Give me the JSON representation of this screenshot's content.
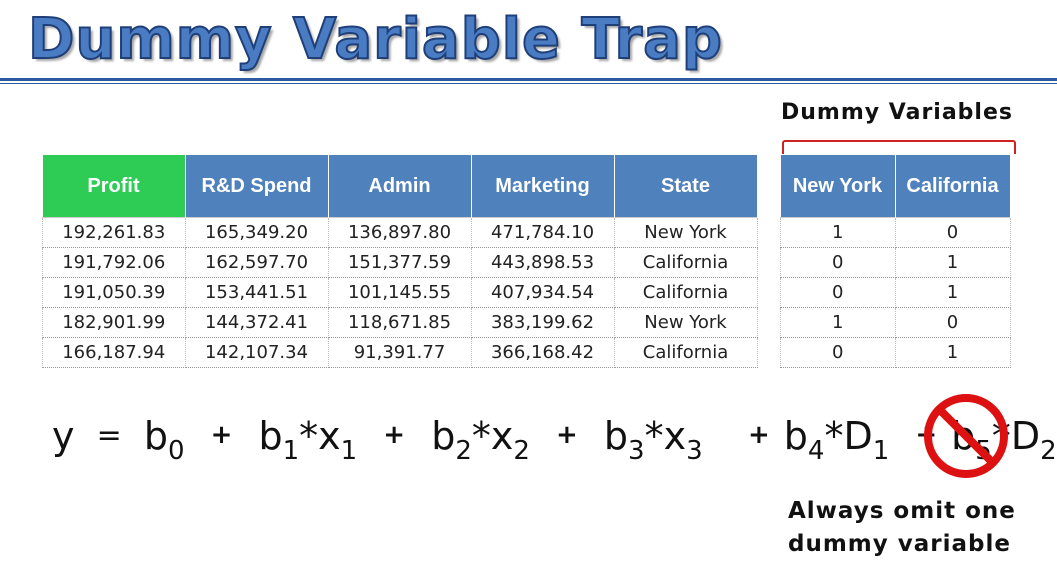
{
  "title": "Dummy Variable Trap",
  "main_table": {
    "headers": [
      "Profit",
      "R&D Spend",
      "Admin",
      "Marketing",
      "State"
    ],
    "rows": [
      [
        "192,261.83",
        "165,349.20",
        "136,897.80",
        "471,784.10",
        "New York"
      ],
      [
        "191,792.06",
        "162,597.70",
        "151,377.59",
        "443,898.53",
        "California"
      ],
      [
        "191,050.39",
        "153,441.51",
        "101,145.55",
        "407,934.54",
        "California"
      ],
      [
        "182,901.99",
        "144,372.41",
        "118,671.85",
        "383,199.62",
        "New York"
      ],
      [
        "166,187.94",
        "142,107.34",
        "91,391.77",
        "366,168.42",
        "California"
      ]
    ]
  },
  "dummy_label": "Dummy Variables",
  "dummy_table": {
    "headers": [
      "New York",
      "California"
    ],
    "rows": [
      [
        "1",
        "0"
      ],
      [
        "0",
        "1"
      ],
      [
        "0",
        "1"
      ],
      [
        "1",
        "0"
      ],
      [
        "0",
        "1"
      ]
    ]
  },
  "equation": {
    "y": "y",
    "eq": "=",
    "plus": "+",
    "star": "*",
    "b": "b",
    "x": "x",
    "D": "D",
    "sub0": "0",
    "sub1": "1",
    "sub2": "2",
    "sub3": "3",
    "sub4": "4",
    "sub5": "5"
  },
  "note": {
    "line1": "Always omit one",
    "line2": "dummy variable"
  },
  "colors": {
    "title": "#4a7cc4",
    "header": "#4f81bd",
    "profit_header": "#2ecc55",
    "bracket": "#cc2222",
    "no_sign": "#dd1111"
  },
  "icons": {
    "no_sign": "prohibition-icon"
  }
}
